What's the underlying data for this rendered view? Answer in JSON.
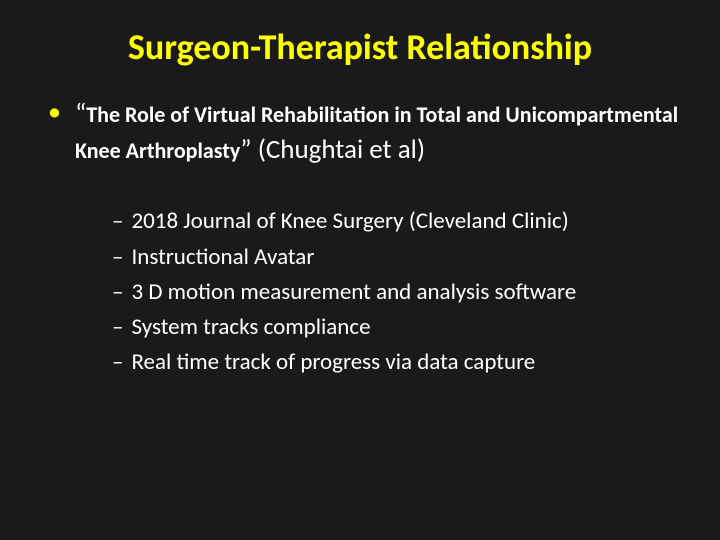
{
  "slide": {
    "background_color": "#1a1a1a",
    "title": {
      "text": "Surgeon-Therapist Relationship",
      "color": "#ffff00",
      "fontsize": 36,
      "font_weight": 700
    },
    "main_bullet": {
      "dot_color": "#ffff00",
      "dot_glyph": "•",
      "dot_fontsize": 26,
      "text_color": "#ffffff",
      "quote_open": "“",
      "quoted_title": "The Role of Virtual Rehabilitation in Total and Unicompartmental Knee Arthroplasty",
      "quote_close": "”",
      "attribution": " (Chughtai et al)",
      "quoted_fontsize": 22,
      "quote_mark_fontsize": 27,
      "attribution_fontsize": 27,
      "quoted_font_weight": 700,
      "attribution_font_weight": 400
    },
    "sub_bullets": {
      "dash_glyph": "–",
      "color": "#ffffff",
      "fontsize": 23,
      "items": [
        "2018 Journal of Knee Surgery (Cleveland Clinic)",
        "Instructional Avatar",
        "3 D motion measurement and analysis software",
        "System tracks compliance",
        "Real time track of progress via data capture"
      ]
    }
  }
}
